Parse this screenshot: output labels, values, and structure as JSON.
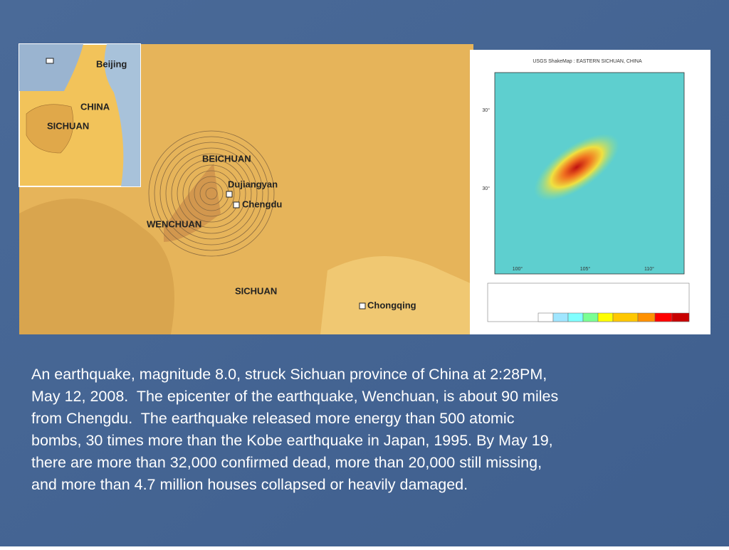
{
  "map": {
    "inset": {
      "china": "CHINA",
      "sichuan": "SICHUAN",
      "beijing": "Beijing"
    },
    "labels": {
      "beichuan": "BEICHUAN",
      "dujiangyan": "Dujiangyan",
      "chengdu": "Chengdu",
      "wenchuan": "WENCHUAN",
      "sichuan": "SICHUAN",
      "chongqing": "Chongqing"
    }
  },
  "shakemap": {
    "title": "USGS ShakeMap : EASTERN SICHUAN, CHINA",
    "lat_labels": [
      "30°",
      "30°"
    ],
    "lon_labels": [
      "100°",
      "105°",
      "110°"
    ]
  },
  "body": {
    "lines": [
      "An earthquake, magnitude 8.0, struck Sichuan province of China at 2:28PM,",
      "May 12, 2008.  The epicenter of the earthquake, Wenchuan, is about 90 miles",
      "from Chengdu.  The earthquake released more energy than 500 atomic",
      "bombs, 30 times more than the Kobe earthquake in Japan, 1995. By May 19,",
      "there are more than 32,000 confirmed dead, more than 20,000 still missing,",
      "and more than 4.7 million houses collapsed or heavily damaged."
    ]
  }
}
